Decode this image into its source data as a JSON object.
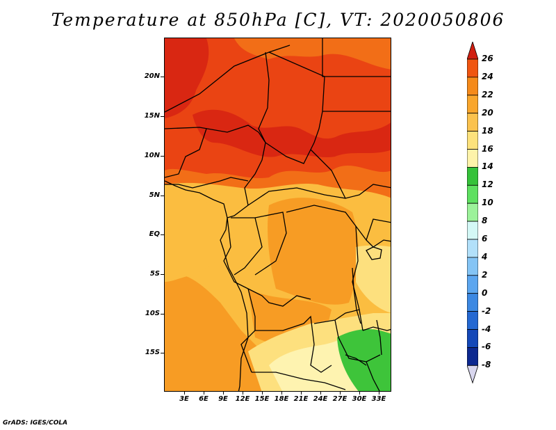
{
  "title": "Temperature at 850hPa [C], VT: 2020050806",
  "credit": "GrADS: IGES/COLA",
  "lat_labels": [
    "20N",
    "15N",
    "10N",
    "5N",
    "EQ",
    "5S",
    "10S",
    "15S"
  ],
  "lon_labels": [
    "3E",
    "6E",
    "9E",
    "12E",
    "15E",
    "18E",
    "21E",
    "24E",
    "27E",
    "30E",
    "33E"
  ],
  "colorbar": {
    "labels": [
      "26",
      "24",
      "22",
      "20",
      "18",
      "16",
      "14",
      "12",
      "10",
      "8",
      "6",
      "4",
      "2",
      "0",
      "-2",
      "-4",
      "-6",
      "-8"
    ],
    "colors": [
      "#e03010",
      "#f05510",
      "#f58a1a",
      "#f9a62c",
      "#fbc24e",
      "#fde27c",
      "#fef3aa",
      "#35c23a",
      "#5ee060",
      "#9cf29a",
      "#d4f8f6",
      "#b2e0fa",
      "#84c4f5",
      "#5ca6ef",
      "#3c88e2",
      "#2468d2",
      "#1448b8",
      "#0c2890",
      "#0a1468"
    ],
    "top_arrow_color": "#d01e10",
    "bottom_arrow_color": "#d8d6ee"
  },
  "field_colors": {
    "t26": "#d92712",
    "t24": "#ea4413",
    "t22": "#f26e17",
    "t20": "#f79c24",
    "t18": "#fbbd40",
    "t16": "#fde07e",
    "t14": "#fef3b0",
    "t12": "#3ec43a"
  }
}
